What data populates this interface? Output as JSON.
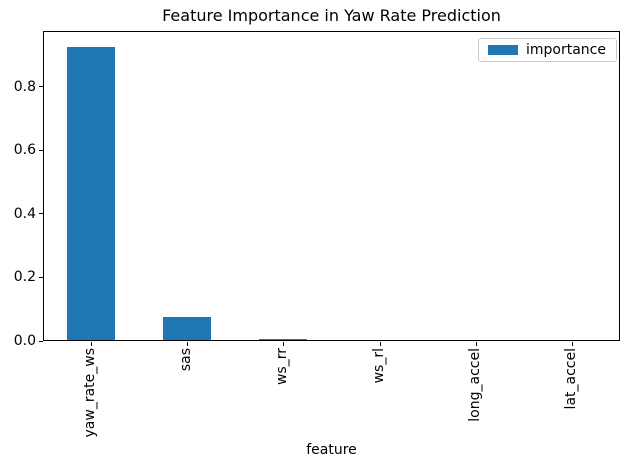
{
  "chart_data": {
    "type": "bar",
    "title": "Feature Importance in Yaw Rate Prediction",
    "xlabel": "feature",
    "ylabel": "",
    "categories": [
      "yaw_rate_ws",
      "sas",
      "ws_rr",
      "ws_rl",
      "long_accel",
      "lat_accel"
    ],
    "series": [
      {
        "name": "importance",
        "values": [
          0.925,
          0.074,
          0.005,
          0.003,
          0.003,
          0.003
        ],
        "color": "#1f77b4"
      }
    ],
    "yticks": [
      0.0,
      0.2,
      0.4,
      0.6,
      0.8
    ],
    "ytick_labels": [
      "0.0",
      "0.2",
      "0.4",
      "0.6",
      "0.8"
    ],
    "ylim": [
      0,
      0.975
    ],
    "grid": false,
    "bar_width_fraction": 0.5,
    "x_tick_rotation": 90,
    "legend": {
      "labels": [
        "importance"
      ],
      "position": "upper right"
    }
  }
}
